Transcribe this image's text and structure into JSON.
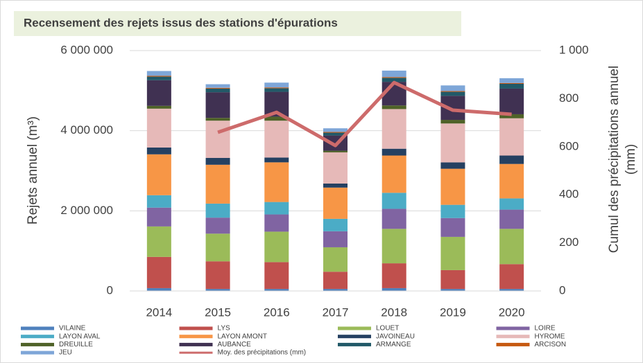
{
  "chart_data": {
    "type": "bar",
    "stacked": true,
    "title": "Recensement des rejets issus des stations d'épurations",
    "ylabel": "Rejets annuel (m³)",
    "y2label": [
      "Cumul des précipitations annuel",
      "(mm)"
    ],
    "categories": [
      "2014",
      "2015",
      "2016",
      "2017",
      "2018",
      "2019",
      "2020"
    ],
    "ylim": [
      0,
      6000000
    ],
    "yticks": [
      0,
      {
        "value": 2000000,
        "label": "2 000 000"
      },
      {
        "value": 4000000,
        "label": "4 000 000"
      },
      {
        "value": 6000000,
        "label": "6 000 000"
      }
    ],
    "y2lim": [
      0,
      1000
    ],
    "y2ticks": [
      0,
      200,
      400,
      600,
      800,
      {
        "value": 1000,
        "label": "1 000"
      }
    ],
    "grid": true,
    "legend": "bottom",
    "series": [
      {
        "name": "VILAINE",
        "color": "#4f81bd",
        "values": [
          70000,
          50000,
          50000,
          50000,
          70000,
          50000,
          50000
        ]
      },
      {
        "name": "LYS",
        "color": "#c0504d",
        "values": [
          780000,
          690000,
          670000,
          430000,
          620000,
          470000,
          620000
        ]
      },
      {
        "name": "LOUET",
        "color": "#9bbb59",
        "values": [
          760000,
          690000,
          760000,
          610000,
          860000,
          830000,
          880000
        ]
      },
      {
        "name": "LOIRE",
        "color": "#8064a2",
        "values": [
          470000,
          400000,
          430000,
          400000,
          500000,
          470000,
          480000
        ]
      },
      {
        "name": "LAYON AVAL",
        "color": "#4bacc6",
        "values": [
          310000,
          350000,
          310000,
          310000,
          400000,
          330000,
          280000
        ]
      },
      {
        "name": "LAYON AMONT",
        "color": "#f79646",
        "values": [
          1020000,
          970000,
          990000,
          780000,
          930000,
          900000,
          860000
        ]
      },
      {
        "name": "JAVOINEAU",
        "color": "#254061",
        "values": [
          170000,
          170000,
          120000,
          100000,
          170000,
          160000,
          210000
        ]
      },
      {
        "name": "HYROME",
        "color": "#e6b9b8",
        "values": [
          970000,
          930000,
          920000,
          780000,
          990000,
          970000,
          930000
        ]
      },
      {
        "name": "DREUILLE",
        "color": "#4f6228",
        "values": [
          70000,
          70000,
          100000,
          40000,
          90000,
          90000,
          100000
        ]
      },
      {
        "name": "AUBANCE",
        "color": "#403152",
        "values": [
          640000,
          640000,
          620000,
          380000,
          590000,
          600000,
          640000
        ]
      },
      {
        "name": "ARMANGE",
        "color": "#215968",
        "values": [
          90000,
          90000,
          90000,
          70000,
          100000,
          100000,
          120000
        ]
      },
      {
        "name": "ARCISON",
        "color": "#c65911",
        "values": [
          20000,
          20000,
          20000,
          20000,
          20000,
          20000,
          20000
        ]
      },
      {
        "name": "JEU",
        "color": "#7ea6d8",
        "values": [
          120000,
          90000,
          120000,
          90000,
          160000,
          140000,
          120000
        ]
      },
      {
        "name": "Moy. des précipitations (mm)",
        "color": "#cd6b6b",
        "type": "line",
        "axis": "y2",
        "values": [
          null,
          660,
          743,
          605,
          867,
          752,
          735
        ]
      }
    ]
  }
}
